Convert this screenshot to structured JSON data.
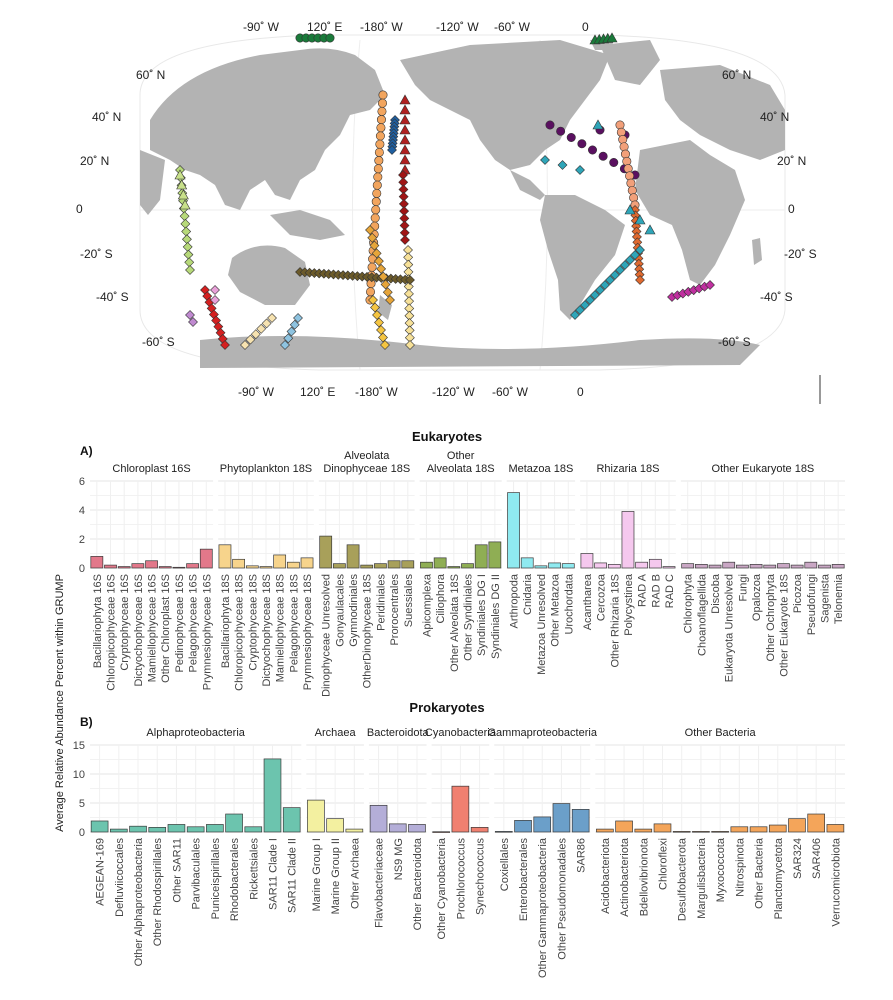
{
  "map": {
    "top_labels": [
      "-90˚ W",
      "120˚ E",
      "-180˚ W",
      "-120˚ W",
      "-60˚ W",
      "0"
    ],
    "bottom_labels": [
      "-90˚ W",
      "120˚ E",
      "-180˚ W",
      "-120˚ W",
      "-60˚ W",
      "0"
    ],
    "left_labels": [
      "60˚ N",
      "40˚ N",
      "20˚ N",
      "0",
      "-20˚ S",
      "-40˚ S",
      "-60˚ S"
    ],
    "right_labels": [
      "60˚ N",
      "40˚ N",
      "20˚ N",
      "0",
      "-20˚ S",
      "-40˚ S",
      "-60˚ S"
    ],
    "land_color": "#b3b3b3"
  },
  "chart_data": [
    {
      "type": "bar",
      "panel": "A)",
      "title": "Eukaryotes",
      "ylabel": "Average Relative Abundance Percent within GRUMP",
      "ylim": [
        0,
        6
      ],
      "yticks": [
        0,
        2,
        4,
        6
      ],
      "grid": true,
      "facets": [
        {
          "name": "Chloroplast 16S",
          "color": "#e2788a",
          "categories": [
            "Bacillariophyta 16S",
            "Chloropicophyceae 16S",
            "Cryptophyceae 16S",
            "Dictyochophyceae 16S",
            "Mamiellophyceae 16S",
            "Other Chloroplast 16S",
            "Pedinophyceae 16S",
            "Pelagophyceae 16S",
            "Prymnesiophyceae 16S"
          ],
          "values": [
            0.8,
            0.2,
            0.1,
            0.3,
            0.5,
            0.1,
            0.05,
            0.3,
            1.3
          ]
        },
        {
          "name": "Phytoplankton 18S",
          "color": "#f7d48c",
          "categories": [
            "Bacillariophyta 18S",
            "Chloropicophyceae 18S",
            "Cryptophyceae 18S",
            "Dictyochophyceae 18S",
            "Mamiellophyceae 18S",
            "Pelagophyceae 18S",
            "Prymnesiophyceae 18S"
          ],
          "values": [
            1.6,
            0.6,
            0.15,
            0.1,
            0.9,
            0.4,
            0.7
          ]
        },
        {
          "name": "Alveolata\nDinophyceae 18S",
          "color": "#a8a05a",
          "categories": [
            "Dinophyceae Unresolved",
            "Gonyaulacales",
            "Gymnodiniales",
            "OtherDinophyceae 18S",
            "Peridiniales",
            "Prorocentrales",
            "Suessiales"
          ],
          "values": [
            2.2,
            0.3,
            1.6,
            0.2,
            0.3,
            0.5,
            0.5
          ]
        },
        {
          "name": "Other\nAlveolata 18S",
          "color": "#8fae54",
          "categories": [
            "Apicomplexa",
            "Ciliophora",
            "Other Alveolata 18S",
            "Other Syndiniales",
            "Syndiniales DG I",
            "Syndiniales DG II"
          ],
          "values": [
            0.4,
            0.7,
            0.1,
            0.3,
            1.6,
            1.8
          ]
        },
        {
          "name": "Metazoa 18S",
          "color": "#8feaf0",
          "categories": [
            "Arthropoda",
            "Cnidaria",
            "Metazoa Unresolved",
            "Other Metazoa",
            "Urochordata"
          ],
          "values": [
            5.2,
            0.7,
            0.15,
            0.35,
            0.3
          ]
        },
        {
          "name": "Rhizaria 18S",
          "color": "#f5c8ee",
          "categories": [
            "Acantharea",
            "Cercozoa",
            "Other Rhizaria 18S",
            "Polycystinea",
            "RAD A",
            "RAD B",
            "RAD C"
          ],
          "values": [
            1.0,
            0.35,
            0.25,
            3.9,
            0.4,
            0.6,
            0.1
          ]
        },
        {
          "name": "Other Eukaryote 18S",
          "color": "#c9a7c4",
          "categories": [
            "Chlorophyta",
            "Choanoflagellida",
            "Discoba",
            "Eukaryota Unresolved",
            "Fungi",
            "Opalozoa",
            "Other Ochrophyta",
            "Other Eukaryote 18S",
            "Picozoa",
            "Pseudofungi",
            "Sagenista",
            "Telonemia"
          ],
          "values": [
            0.3,
            0.25,
            0.2,
            0.4,
            0.2,
            0.25,
            0.2,
            0.3,
            0.2,
            0.4,
            0.2,
            0.25
          ]
        }
      ]
    },
    {
      "type": "bar",
      "panel": "B)",
      "title": "Prokaryotes",
      "ylim": [
        0,
        15
      ],
      "yticks": [
        0,
        5,
        10,
        15
      ],
      "grid": true,
      "facets": [
        {
          "name": "Alphaproteobacteria",
          "color": "#6cc4ae",
          "categories": [
            "AEGEAN-169",
            "Defluviicoccales",
            "Other Alphaproteobacteria",
            "Other Rhodospirillales",
            "Other SAR11",
            "Parvibaculales",
            "Puniceispirillales",
            "Rhodobacterales",
            "Rickettsiales",
            "SAR11 Clade I",
            "SAR11 Clade II"
          ],
          "values": [
            1.9,
            0.5,
            1.0,
            0.8,
            1.3,
            0.9,
            1.3,
            3.1,
            0.9,
            12.6,
            4.2
          ]
        },
        {
          "name": "Archaea",
          "color": "#f3f0a0",
          "categories": [
            "Marine Group I",
            "Marine Group II",
            "Other Archaea"
          ],
          "values": [
            5.5,
            2.3,
            0.5
          ]
        },
        {
          "name": "Bacteroidota",
          "color": "#b4aed8",
          "categories": [
            "Flavobacteriaceae",
            "NS9 MG",
            "Other Bacteroidota"
          ],
          "values": [
            4.6,
            1.4,
            1.3
          ]
        },
        {
          "name": "Cyanobacteria",
          "color": "#f08070",
          "categories": [
            "Other Cyanobacteria",
            "Prochlorococcus",
            "Synechococcus"
          ],
          "values": [
            0.05,
            7.9,
            0.8
          ]
        },
        {
          "name": "Gammaproteobacteria",
          "color": "#6b9fc9",
          "categories": [
            "Coxiellales",
            "Enterobacterales",
            "Other Gammaproteobacteria",
            "Other Pseudomonadales",
            "SAR86"
          ],
          "values": [
            0.1,
            2.0,
            2.6,
            4.9,
            3.9
          ]
        },
        {
          "name": "Other Bacteria",
          "color": "#f4a55a",
          "categories": [
            "Acidobacteriota",
            "Actinobacteriota",
            "Bdellovibrionota",
            "Chloroflexi",
            "Desulfobacterota",
            "Margulisbacteria",
            "Myxococcota",
            "Nitrospinota",
            "Other Bacteria",
            "Planctomycetota",
            "SAR324",
            "SAR406",
            "Verrucomicrobiota"
          ],
          "values": [
            0.5,
            1.9,
            0.5,
            1.4,
            0.1,
            0.1,
            0.1,
            0.9,
            0.9,
            1.2,
            2.3,
            3.1,
            1.3
          ]
        }
      ]
    }
  ]
}
